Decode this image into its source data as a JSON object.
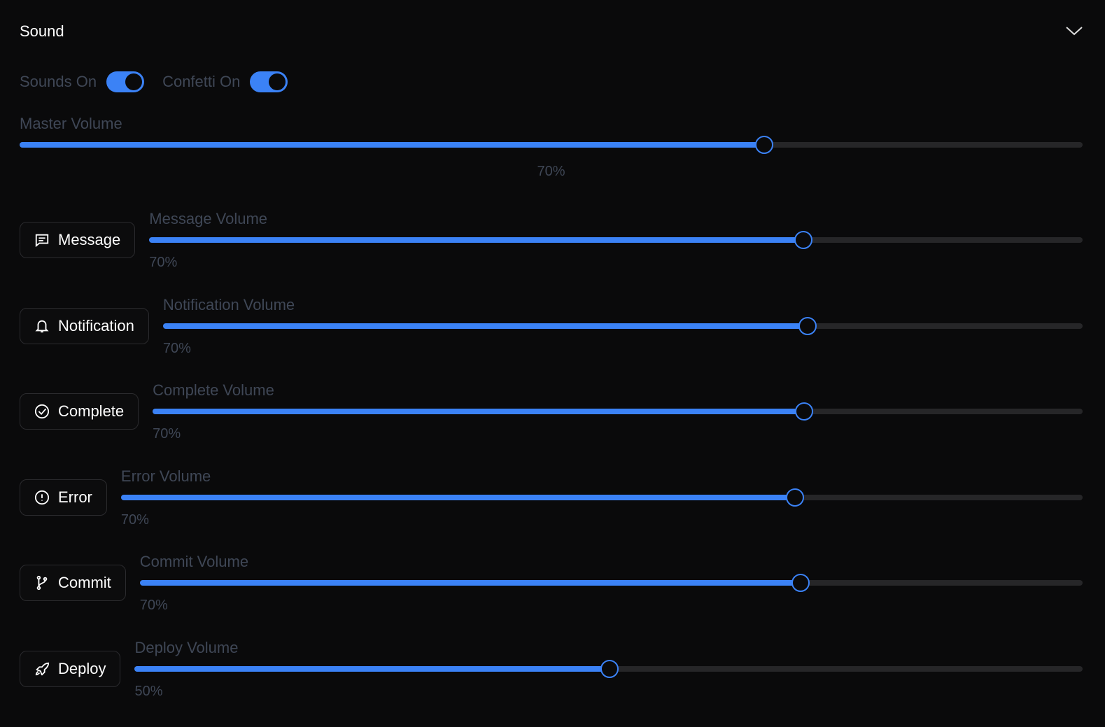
{
  "header": {
    "title": "Sound"
  },
  "toggles": [
    {
      "label": "Sounds On",
      "on": true
    },
    {
      "label": "Confetti On",
      "on": true
    }
  ],
  "range": [
    0,
    100
  ],
  "master": {
    "label": "Master Volume",
    "value": 70,
    "value_label": "70%"
  },
  "sounds": [
    {
      "button": "Message",
      "label": "Message Volume",
      "value": 70,
      "value_label": "70%"
    },
    {
      "button": "Notification",
      "label": "Notification Volume",
      "value": 70,
      "value_label": "70%"
    },
    {
      "button": "Complete",
      "label": "Complete Volume",
      "value": 70,
      "value_label": "70%"
    },
    {
      "button": "Error",
      "label": "Error Volume",
      "value": 70,
      "value_label": "70%"
    },
    {
      "button": "Commit",
      "label": "Commit Volume",
      "value": 70,
      "value_label": "70%"
    },
    {
      "button": "Deploy",
      "label": "Deploy Volume",
      "value": 50,
      "value_label": "50%"
    }
  ]
}
